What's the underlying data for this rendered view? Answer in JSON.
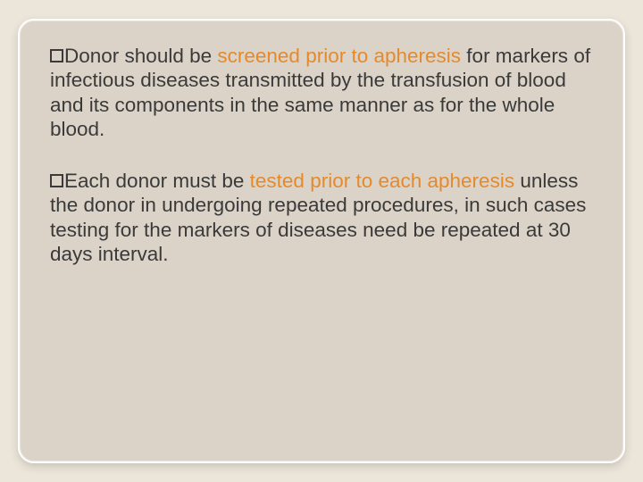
{
  "slide": {
    "background_color": "#ece6da",
    "card_background": "#dbd3c7",
    "card_border_color": "#ffffff",
    "text_color": "#3a3a3a",
    "highlight_color": "#e58a2c",
    "font_family": "Verdana",
    "font_size_pt": 17,
    "bullets": [
      {
        "lead": "Donor",
        "highlight_pre": " should be ",
        "highlight_word": "screened",
        "highlight_post": " prior to apheresis",
        "rest": " for markers of infectious diseases transmitted by the transfusion of blood and its components in the same manner as for the whole blood."
      },
      {
        "lead": "Each",
        "highlight_pre": " donor must be ",
        "highlight_word": "tested",
        "highlight_post": " prior to each apheresis",
        "rest": " unless the donor in undergoing repeated procedures, in such cases testing for the markers of diseases need be repeated at 30 days interval."
      }
    ]
  }
}
